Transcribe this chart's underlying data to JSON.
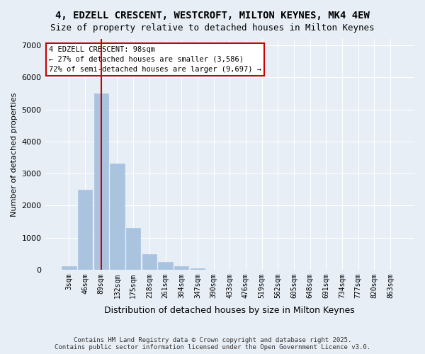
{
  "title_line1": "4, EDZELL CRESCENT, WESTCROFT, MILTON KEYNES, MK4 4EW",
  "title_line2": "Size of property relative to detached houses in Milton Keynes",
  "xlabel": "Distribution of detached houses by size in Milton Keynes",
  "ylabel": "Number of detached properties",
  "categories": [
    "3sqm",
    "46sqm",
    "89sqm",
    "132sqm",
    "175sqm",
    "218sqm",
    "261sqm",
    "304sqm",
    "347sqm",
    "390sqm",
    "433sqm",
    "476sqm",
    "519sqm",
    "562sqm",
    "605sqm",
    "648sqm",
    "691sqm",
    "734sqm",
    "777sqm",
    "820sqm",
    "863sqm"
  ],
  "values": [
    100,
    2500,
    5500,
    3300,
    1300,
    480,
    230,
    100,
    50,
    0,
    0,
    0,
    0,
    0,
    0,
    0,
    0,
    0,
    0,
    0,
    0
  ],
  "bar_color": "#aac4e0",
  "bar_edgecolor": "#aac4e0",
  "vline_x": 2,
  "vline_color": "#cc0000",
  "annotation_title": "4 EDZELL CRESCENT: 98sqm",
  "annotation_line2": "← 27% of detached houses are smaller (3,586)",
  "annotation_line3": "72% of semi-detached houses are larger (9,697) →",
  "annotation_box_edgecolor": "#cc0000",
  "annotation_box_facecolor": "#ffffff",
  "ylim": [
    0,
    7200
  ],
  "yticks": [
    0,
    1000,
    2000,
    3000,
    4000,
    5000,
    6000,
    7000
  ],
  "background_color": "#e8eef5",
  "axes_facecolor": "#e8eef5",
  "grid_color": "#ffffff",
  "footer_line1": "Contains HM Land Registry data © Crown copyright and database right 2025.",
  "footer_line2": "Contains public sector information licensed under the Open Government Licence v3.0."
}
